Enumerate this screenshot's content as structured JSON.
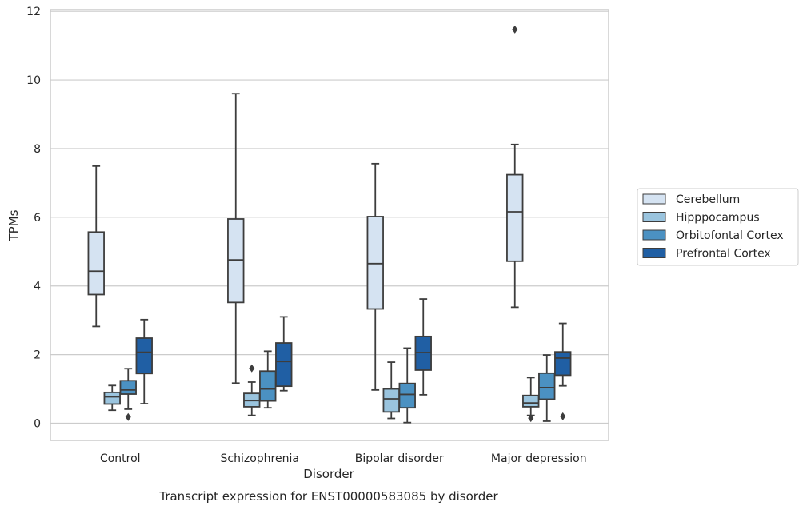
{
  "chart_data": {
    "type": "box",
    "caption": "Transcript expression for ENST00000583085 by disorder",
    "xlabel": "Disorder",
    "ylabel": "TPMs",
    "categories": [
      "Control",
      "Schizophrenia",
      "Bipolar disorder",
      "Major depression"
    ],
    "ylim": [
      -0.5,
      12.05
    ],
    "yticks": [
      0,
      2,
      4,
      6,
      8,
      10,
      12
    ],
    "grid": "horizontal",
    "legend_placement": "right",
    "series": [
      {
        "name": "Cerebellum",
        "color": "#d5e3f2",
        "boxes": [
          {
            "whisker_low": 2.82,
            "q1": 3.75,
            "median": 4.43,
            "q3": 5.57,
            "whisker_high": 7.49,
            "outliers": []
          },
          {
            "whisker_low": 1.17,
            "q1": 3.52,
            "median": 4.76,
            "q3": 5.95,
            "whisker_high": 9.6,
            "outliers": []
          },
          {
            "whisker_low": 0.97,
            "q1": 3.33,
            "median": 4.65,
            "q3": 6.02,
            "whisker_high": 7.56,
            "outliers": []
          },
          {
            "whisker_low": 3.38,
            "q1": 4.72,
            "median": 6.16,
            "q3": 7.24,
            "whisker_high": 8.12,
            "outliers": [
              11.47
            ]
          }
        ]
      },
      {
        "name": "Hipppocampus",
        "color": "#9ac4de",
        "boxes": [
          {
            "whisker_low": 0.38,
            "q1": 0.56,
            "median": 0.77,
            "q3": 0.9,
            "whisker_high": 1.1,
            "outliers": []
          },
          {
            "whisker_low": 0.23,
            "q1": 0.48,
            "median": 0.66,
            "q3": 0.87,
            "whisker_high": 1.2,
            "outliers": [
              1.6
            ]
          },
          {
            "whisker_low": 0.14,
            "q1": 0.33,
            "median": 0.71,
            "q3": 1.0,
            "whisker_high": 1.78,
            "outliers": []
          },
          {
            "whisker_low": 0.23,
            "q1": 0.48,
            "median": 0.59,
            "q3": 0.81,
            "whisker_high": 1.33,
            "outliers": [
              0.15
            ]
          }
        ]
      },
      {
        "name": "Orbitofontal Cortex",
        "color": "#4b91c2",
        "boxes": [
          {
            "whisker_low": 0.41,
            "q1": 0.85,
            "median": 0.97,
            "q3": 1.24,
            "whisker_high": 1.59,
            "outliers": [
              0.18
            ]
          },
          {
            "whisker_low": 0.45,
            "q1": 0.65,
            "median": 1.0,
            "q3": 1.52,
            "whisker_high": 2.1,
            "outliers": []
          },
          {
            "whisker_low": 0.02,
            "q1": 0.45,
            "median": 0.84,
            "q3": 1.16,
            "whisker_high": 2.19,
            "outliers": []
          },
          {
            "whisker_low": 0.06,
            "q1": 0.7,
            "median": 1.04,
            "q3": 1.46,
            "whisker_high": 1.99,
            "outliers": []
          }
        ]
      },
      {
        "name": "Prefrontal Cortex",
        "color": "#205fa4",
        "boxes": [
          {
            "whisker_low": 0.57,
            "q1": 1.45,
            "median": 2.07,
            "q3": 2.48,
            "whisker_high": 3.02,
            "outliers": []
          },
          {
            "whisker_low": 0.95,
            "q1": 1.08,
            "median": 1.8,
            "q3": 2.34,
            "whisker_high": 3.1,
            "outliers": []
          },
          {
            "whisker_low": 0.83,
            "q1": 1.55,
            "median": 2.06,
            "q3": 2.53,
            "whisker_high": 3.62,
            "outliers": []
          },
          {
            "whisker_low": 1.09,
            "q1": 1.4,
            "median": 1.9,
            "q3": 2.08,
            "whisker_high": 2.91,
            "outliers": [
              0.2
            ]
          }
        ]
      }
    ]
  }
}
